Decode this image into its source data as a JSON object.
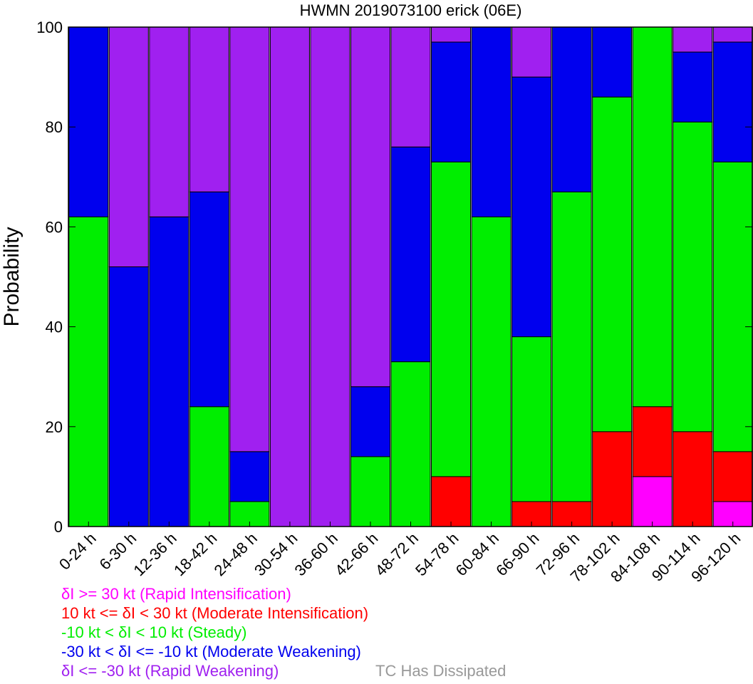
{
  "chart_data": {
    "type": "bar",
    "stacked": true,
    "title": "HWMN 2019073100 erick (06E)",
    "xlabel": "",
    "ylabel": "Probability",
    "ylim": [
      0,
      100
    ],
    "yticks": [
      0,
      20,
      40,
      60,
      80,
      100
    ],
    "grid": false,
    "categories": [
      "0-24 h",
      "6-30 h",
      "12-36 h",
      "18-42 h",
      "24-48 h",
      "30-54 h",
      "36-60 h",
      "42-66 h",
      "48-72 h",
      "54-78 h",
      "60-84 h",
      "66-90 h",
      "72-96 h",
      "78-102 h",
      "84-108 h",
      "90-114 h",
      "96-120 h"
    ],
    "series": [
      {
        "name": "δI >= 30 kt (Rapid Intensification)",
        "color": "#ff00ff",
        "values": [
          0,
          0,
          0,
          0,
          0,
          0,
          0,
          0,
          0,
          0,
          0,
          0,
          0,
          0,
          10,
          0,
          5
        ]
      },
      {
        "name": "10 kt <= δI < 30 kt (Moderate Intensification)",
        "color": "#ff0000",
        "values": [
          0,
          0,
          0,
          0,
          0,
          0,
          0,
          0,
          0,
          10,
          0,
          5,
          5,
          19,
          14,
          19,
          10
        ]
      },
      {
        "name": "-10 kt < δI < 10 kt (Steady)",
        "color": "#00ee00",
        "values": [
          62,
          0,
          0,
          24,
          5,
          0,
          0,
          14,
          33,
          63,
          62,
          33,
          62,
          67,
          76,
          62,
          58
        ]
      },
      {
        "name": "-30 kt < δI <= -10 kt (Moderate Weakening)",
        "color": "#0000ee",
        "values": [
          38,
          52,
          62,
          43,
          10,
          0,
          0,
          14,
          43,
          24,
          38,
          52,
          33,
          14,
          0,
          14,
          24
        ]
      },
      {
        "name": "δI <= -30 kt (Rapid Weakening)",
        "color": "#a020f0",
        "values": [
          0,
          48,
          38,
          33,
          85,
          100,
          100,
          72,
          24,
          3,
          0,
          10,
          0,
          0,
          0,
          5,
          3
        ]
      }
    ],
    "legend_position": "bottom-left",
    "note": "TC Has Dissipated",
    "note_color": "#999999"
  }
}
